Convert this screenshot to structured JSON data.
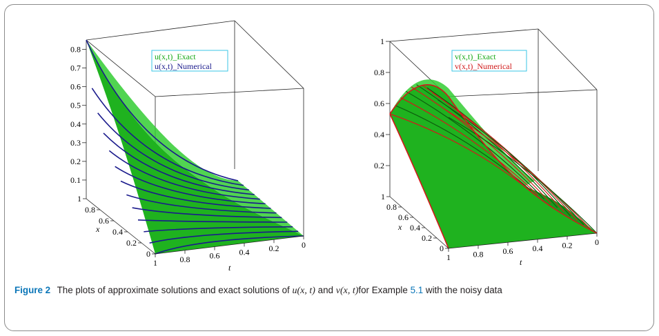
{
  "caption": {
    "label": "Figure 2",
    "text_before": "The plots of approximate solutions and exact solutions of ",
    "u_expr": "u(x, t)",
    "and": " and ",
    "v_expr": "v(x, t)",
    "text_for": "for Example ",
    "ref": "5.1",
    "text_after": " with the noisy data"
  },
  "colors": {
    "exact": "#16a916",
    "exact_light": "#3ad13a",
    "u_numerical": "#1a1a8c",
    "v_numerical": "#d11a1a",
    "caption_label": "#0b76b8",
    "legend_border": "#39c6e6"
  },
  "chart_data": [
    {
      "type": "surface",
      "title": "",
      "legend": [
        "u(x,t)_Exact",
        "u(x,t)_Numerical"
      ],
      "legend_placement": "top-center",
      "series": [
        {
          "name": "u(x,t)_Exact",
          "color": "#16a916"
        },
        {
          "name": "u(x,t)_Numerical",
          "color": "#1a1a8c"
        }
      ],
      "xlabel": "x",
      "tlabel": "t",
      "zlabel": "",
      "z_ticks": [
        "0.1",
        "0.2",
        "0.3",
        "0.4",
        "0.5",
        "0.6",
        "0.7",
        "0.8"
      ],
      "x_ticks": [
        "0",
        "0.2",
        "0.4",
        "0.6",
        "0.8",
        "1"
      ],
      "t_ticks": [
        "1",
        "0.8",
        "0.6",
        "0.4",
        "0.2",
        "0"
      ],
      "xlim": [
        0,
        1
      ],
      "tlim": [
        0,
        1
      ],
      "zlim": [
        0,
        0.85
      ],
      "surface_corners": {
        "x0_t0": 0.0,
        "x1_t0": 0.0,
        "x0_t1": 0.0,
        "x1_t1": 0.83
      }
    },
    {
      "type": "surface",
      "title": "",
      "legend": [
        "v(x,t)_Exact",
        "v(x,t)_Numerical"
      ],
      "legend_placement": "top-center",
      "series": [
        {
          "name": "v(x,t)_Exact",
          "color": "#16a916"
        },
        {
          "name": "v(x,t)_Numerical",
          "color": "#d11a1a"
        }
      ],
      "xlabel": "x",
      "tlabel": "t",
      "zlabel": "",
      "z_ticks": [
        "0.2",
        "0.4",
        "0.6",
        "0.8",
        "1"
      ],
      "x_ticks": [
        "0",
        "0.2",
        "0.4",
        "0.6",
        "0.8",
        "1"
      ],
      "t_ticks": [
        "1",
        "0.8",
        "0.6",
        "0.4",
        "0.2",
        "0"
      ],
      "xlim": [
        0,
        1
      ],
      "tlim": [
        0,
        1
      ],
      "zlim": [
        0,
        1
      ]
    }
  ]
}
